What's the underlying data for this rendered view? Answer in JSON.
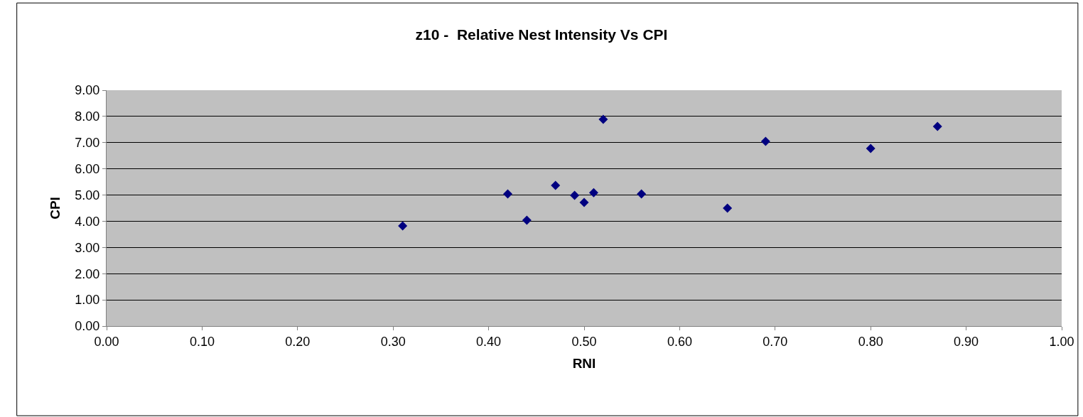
{
  "chart_data": {
    "type": "scatter",
    "title": "z10 -  Relative Nest Intensity Vs CPI",
    "xlabel": "RNI",
    "ylabel": "CPI",
    "series": [
      {
        "color": "#000080",
        "x": [
          0.31,
          0.42,
          0.44,
          0.47,
          0.49,
          0.5,
          0.51,
          0.52,
          0.56,
          0.65,
          0.69,
          0.8,
          0.87
        ],
        "values": [
          3.82,
          5.04,
          4.04,
          5.37,
          4.99,
          4.72,
          5.09,
          7.89,
          5.04,
          4.5,
          7.05,
          6.78,
          7.62
        ]
      }
    ],
    "xlim": [
      0,
      1
    ],
    "xticks": [
      {
        "value": 0,
        "label": "0.00"
      },
      {
        "value": 0.1,
        "label": "0.10"
      },
      {
        "value": 0.2,
        "label": "0.20"
      },
      {
        "value": 0.3,
        "label": "0.30"
      },
      {
        "value": 0.4,
        "label": "0.40"
      },
      {
        "value": 0.5,
        "label": "0.50"
      },
      {
        "value": 0.6,
        "label": "0.60"
      },
      {
        "value": 0.7,
        "label": "0.70"
      },
      {
        "value": 0.8,
        "label": "0.80"
      },
      {
        "value": 0.9,
        "label": "0.90"
      },
      {
        "value": 1,
        "label": "1.00"
      }
    ],
    "ylim": [
      0,
      9
    ],
    "yticks": [
      {
        "value": 0,
        "label": "0.00"
      },
      {
        "value": 1,
        "label": "1.00"
      },
      {
        "value": 2,
        "label": "2.00"
      },
      {
        "value": 3,
        "label": "3.00"
      },
      {
        "value": 4,
        "label": "4.00"
      },
      {
        "value": 5,
        "label": "5.00"
      },
      {
        "value": 6,
        "label": "6.00"
      },
      {
        "value": 7,
        "label": "7.00"
      },
      {
        "value": 8,
        "label": "8.00"
      },
      {
        "value": 9,
        "label": "9.00"
      }
    ],
    "grid": "y",
    "legend": false,
    "marker": "diamond"
  }
}
